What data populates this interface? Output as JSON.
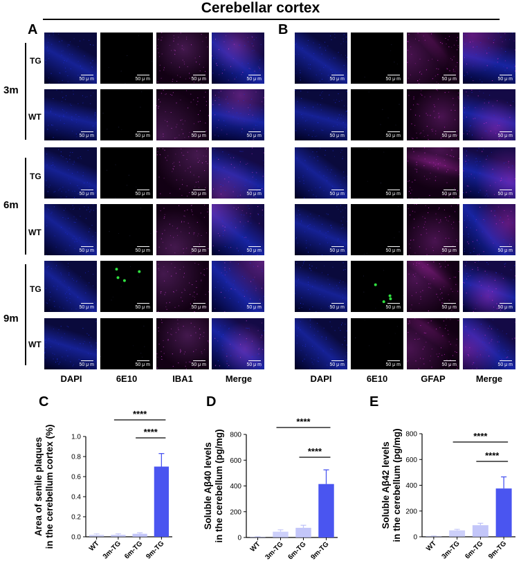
{
  "figure": {
    "title": "Cerebellar cortex",
    "panel_labels": [
      "A",
      "B",
      "C",
      "D",
      "E"
    ],
    "time_groups": [
      "3m",
      "6m",
      "9m"
    ],
    "row_labels": [
      "TG",
      "WT",
      "TG",
      "WT",
      "TG",
      "WT"
    ],
    "columns_A": [
      "DAPI",
      "6E10",
      "IBA1",
      "Merge"
    ],
    "columns_B": [
      "DAPI",
      "6E10",
      "GFAP",
      "Merge"
    ],
    "scale_bar": "50 μ m",
    "colors": {
      "dapi": "#1e2fd6",
      "iba1": "#c040c8",
      "gfap": "#d030d0",
      "plaque": "#30e040",
      "bar_dark": "#4a55f0",
      "bar_light": "#b8bcf8"
    }
  },
  "chart_data": [
    {
      "type": "bar",
      "panel": "C",
      "categories": [
        "WT",
        "3m-TG",
        "6m-TG",
        "9m-TG"
      ],
      "values": [
        0.02,
        0.02,
        0.03,
        0.7
      ],
      "errors": [
        0.01,
        0.01,
        0.01,
        0.13
      ],
      "ylabel": "Area of senile plaques in the cerebellum cortex (%)",
      "ylabel_lines": [
        "Area of senile plaques",
        "in the cerebellum cortex (%)"
      ],
      "ylim": [
        0,
        1.0
      ],
      "yticks": [
        "0.0",
        "0.2",
        "0.4",
        "0.6",
        "0.8",
        "1.0"
      ],
      "significance": [
        {
          "from": "3m-TG",
          "to": "9m-TG",
          "label": "****"
        },
        {
          "from": "6m-TG",
          "to": "9m-TG",
          "label": "****"
        }
      ]
    },
    {
      "type": "bar",
      "panel": "D",
      "categories": [
        "WT",
        "3m-TG",
        "6m-TG",
        "9m-TG"
      ],
      "values": [
        5,
        45,
        75,
        415
      ],
      "errors": [
        3,
        15,
        20,
        110
      ],
      "ylabel": "Soluble Aβ40 levels in the cerebellum (pg/mg)",
      "ylabel_lines": [
        "Soluble Aβ40 levels",
        "in the cerebellum (pg/mg)"
      ],
      "ylim": [
        0,
        800
      ],
      "yticks": [
        "0",
        "200",
        "400",
        "600",
        "800"
      ],
      "significance": [
        {
          "from": "3m-TG",
          "to": "9m-TG",
          "label": "****"
        },
        {
          "from": "6m-TG",
          "to": "9m-TG",
          "label": "****"
        }
      ]
    },
    {
      "type": "bar",
      "panel": "E",
      "categories": [
        "WT",
        "3m-TG",
        "6m-TG",
        "9m-TG"
      ],
      "values": [
        5,
        50,
        90,
        375
      ],
      "errors": [
        2,
        8,
        15,
        90
      ],
      "ylabel": "Soluble Aβ42 levels in the cerebellum (pg/mg)",
      "ylabel_lines": [
        "Soluble Aβ42 levels",
        "in the cerebellum (pg/mg)"
      ],
      "ylim": [
        0,
        800
      ],
      "yticks": [
        "0",
        "200",
        "400",
        "600",
        "800"
      ],
      "significance": [
        {
          "from": "3m-TG",
          "to": "9m-TG",
          "label": "****"
        },
        {
          "from": "6m-TG",
          "to": "9m-TG",
          "label": "****"
        }
      ]
    }
  ]
}
